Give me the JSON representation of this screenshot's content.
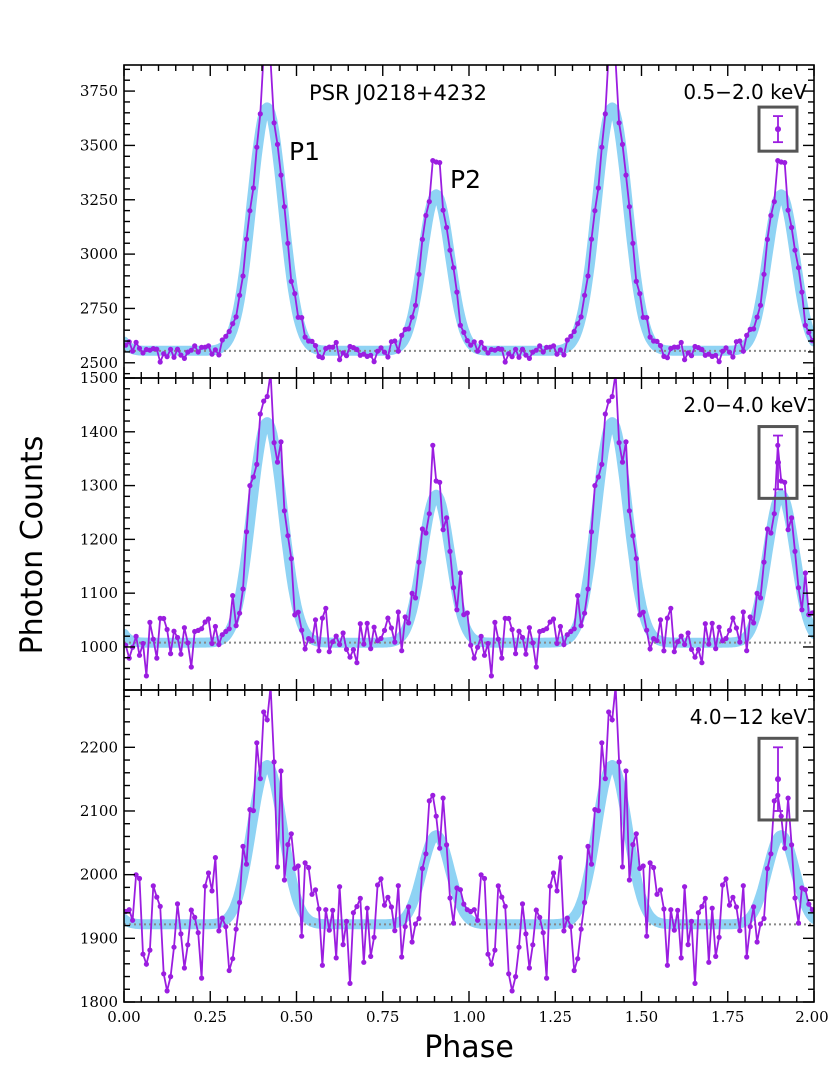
{
  "chart_data": {
    "type": "line",
    "title": "PSR J0218+4232",
    "xlabel": "Phase",
    "ylabel": "Photon Counts",
    "xlim": [
      0,
      2
    ],
    "x_ticks": [
      "0.00",
      "0.25",
      "0.50",
      "0.75",
      "1.00",
      "1.25",
      "1.50",
      "1.75",
      "2.00"
    ],
    "peak_labels": [
      "P1",
      "P2"
    ],
    "colors": {
      "data": "#9b1de0",
      "model": "#8fd3f4",
      "baseline": "#888888",
      "frame": "#555555"
    },
    "panels": [
      {
        "energy_band": "0.5−2.0 keV",
        "ylim": [
          2430,
          3870
        ],
        "y_ticks": [
          "2500",
          "2750",
          "3000",
          "3250",
          "3500",
          "3750"
        ],
        "baseline": 2555,
        "model": {
          "p1_amp": 1120,
          "p1_center": 0.415,
          "p1_sigma": 0.045,
          "p2_amp": 720,
          "p2_center": 0.905,
          "p2_sigma": 0.04
        },
        "errorbar": {
          "center": 3575,
          "half_width": 60
        },
        "noise": 25,
        "overshoot": 160
      },
      {
        "energy_band": "2.0−4.0 keV",
        "ylim": [
          920,
          1500
        ],
        "y_ticks": [
          "1000",
          "1100",
          "1200",
          "1300",
          "1400",
          "1500"
        ],
        "baseline": 1008,
        "model": {
          "p1_amp": 410,
          "p1_center": 0.415,
          "p1_sigma": 0.045,
          "p2_amp": 275,
          "p2_center": 0.905,
          "p2_sigma": 0.04
        },
        "errorbar": {
          "center": 1343,
          "half_width": 50
        },
        "noise": 30,
        "overshoot": 35
      },
      {
        "energy_band": "4.0−12 keV",
        "ylim": [
          1800,
          2290
        ],
        "y_ticks": [
          "1800",
          "1900",
          "2000",
          "2100",
          "2200"
        ],
        "baseline": 1922,
        "model": {
          "p1_amp": 250,
          "p1_center": 0.415,
          "p1_sigma": 0.045,
          "p2_amp": 140,
          "p2_center": 0.905,
          "p2_sigma": 0.04
        },
        "errorbar": {
          "center": 2150,
          "half_width": 50
        },
        "noise": 55,
        "overshoot": 55
      }
    ]
  }
}
